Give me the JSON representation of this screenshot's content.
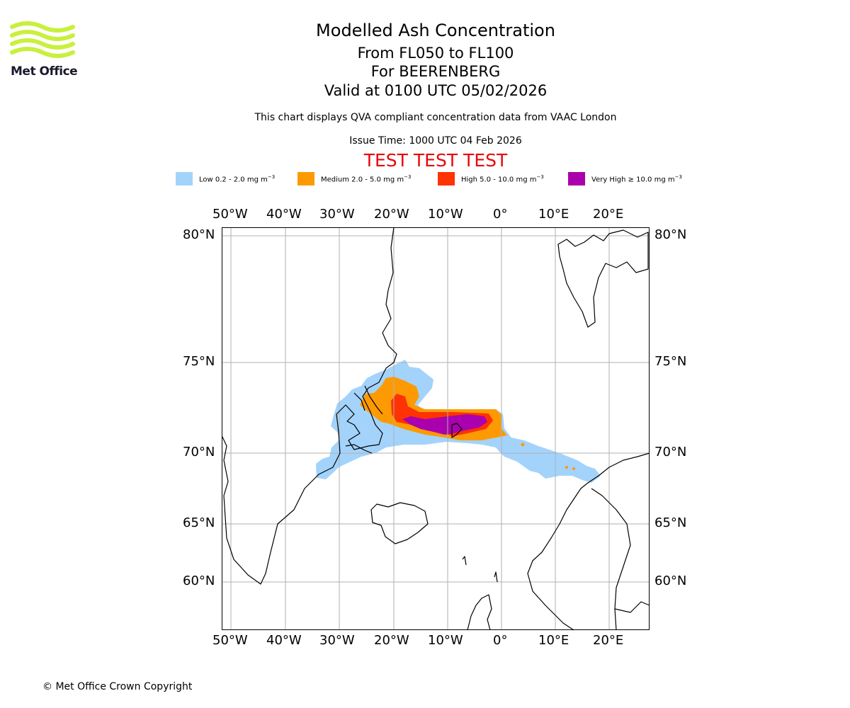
{
  "header": {
    "title": "Modelled Ash Concentration",
    "levels": "From FL050 to FL100",
    "volcano": "For BEERENBERG",
    "valid": "Valid at 0100 UTC 05/02/2026",
    "note": "This chart displays QVA compliant concentration data from VAAC London",
    "issue": "Issue Time: 1000 UTC 04 Feb 2026",
    "test_banner": "TEST TEST TEST"
  },
  "logo": {
    "text": "Met Office",
    "color": "#c8f03c"
  },
  "legend": [
    {
      "label": "Low 0.2 - 2.0 mg m",
      "sup": "−3",
      "color": "#a3d3fb"
    },
    {
      "label": "Medium 2.0 - 5.0 mg m",
      "sup": "−3",
      "color": "#fd9a03"
    },
    {
      "label": "High 5.0 - 10.0 mg m",
      "sup": "−3",
      "color": "#fe3203"
    },
    {
      "label": "Very High ≥ 10.0 mg m",
      "sup": "−3",
      "color": "#aa00ad"
    }
  ],
  "axes": {
    "lon_labels": [
      "50°W",
      "40°W",
      "30°W",
      "20°W",
      "10°W",
      "0°",
      "10°E",
      "20°E"
    ],
    "lat_labels": [
      "80°N",
      "75°N",
      "70°N",
      "65°N",
      "60°N"
    ]
  },
  "footer": {
    "copyright": "© Met Office Crown Copyright"
  }
}
